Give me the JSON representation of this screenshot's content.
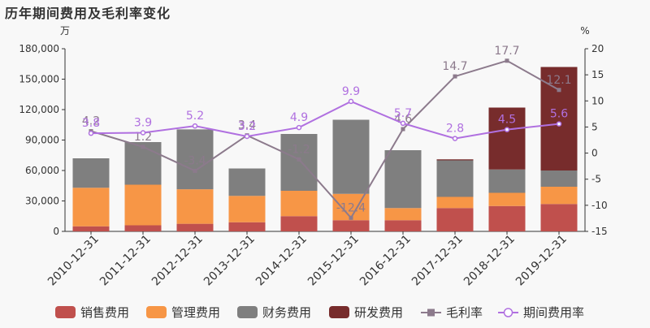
{
  "chart_data": {
    "type": "bar",
    "title": "历年期间费用及毛利率变化",
    "left_unit": "万",
    "right_unit": "%",
    "categories": [
      "2010-12-31",
      "2011-12-31",
      "2012-12-31",
      "2013-12-31",
      "2014-12-31",
      "2015-12-31",
      "2016-12-31",
      "2017-12-31",
      "2018-12-31",
      "2019-12-31"
    ],
    "y_left": {
      "min": 0,
      "max": 180000,
      "ticks": [
        "0",
        "30,000",
        "60,000",
        "90,000",
        "120,000",
        "150,000",
        "180,000"
      ]
    },
    "y_right": {
      "min": -15,
      "max": 20,
      "ticks": [
        "-15",
        "-10",
        "-5",
        "0",
        "5",
        "10",
        "15",
        "20"
      ]
    },
    "bar_series": [
      {
        "name": "销售费用",
        "color": "#c0504d",
        "values": [
          5000,
          6000,
          7500,
          9000,
          15000,
          11000,
          11000,
          23000,
          25000,
          27000
        ]
      },
      {
        "name": "管理费用",
        "color": "#f79646",
        "values": [
          38000,
          40000,
          34000,
          26000,
          25000,
          26000,
          12000,
          11000,
          13000,
          17000
        ]
      },
      {
        "name": "财务费用",
        "color": "#7f7f7f",
        "values": [
          29000,
          42000,
          59000,
          27000,
          56000,
          73000,
          57000,
          36000,
          23000,
          16000
        ]
      },
      {
        "name": "研发费用",
        "color": "#772c2c",
        "values": [
          0,
          0,
          0,
          0,
          0,
          0,
          0,
          1000,
          61000,
          102000
        ]
      }
    ],
    "line_series": [
      {
        "name": "毛利率",
        "color": "#8c7a8c",
        "marker": "square",
        "values": [
          4.2,
          1.2,
          -3.4,
          3.4,
          -1.2,
          -12.4,
          4.6,
          14.7,
          17.7,
          12.1
        ],
        "labels": [
          "4.2",
          "1.2",
          "-3.4",
          "3.4",
          "-1.2",
          "-12.4",
          "4.6",
          "14.7",
          "17.7",
          "12.1"
        ]
      },
      {
        "name": "期间费用率",
        "color": "#b070e0",
        "marker": "circle",
        "values": [
          3.8,
          3.9,
          5.2,
          3.2,
          4.9,
          9.9,
          5.7,
          2.8,
          4.5,
          5.6
        ],
        "labels": [
          "3.8",
          "3.9",
          "5.2",
          "3.2",
          "4.9",
          "9.9",
          "5.7",
          "2.8",
          "4.5",
          "5.6"
        ]
      }
    ]
  }
}
